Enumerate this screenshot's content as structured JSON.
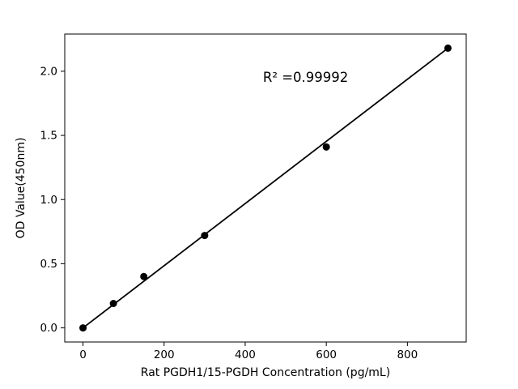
{
  "chart_data": {
    "type": "scatter",
    "title": "",
    "xlabel": "Rat PGDH1/15-PGDH Concentration (pg/mL)",
    "ylabel": "OD Value(450nm)",
    "annotation": "R² =0.99992",
    "x": [
      0,
      75,
      150,
      300,
      600,
      900
    ],
    "y": [
      0.0,
      0.19,
      0.4,
      0.72,
      1.41,
      2.18
    ],
    "fit_line": {
      "x1": 0,
      "y1": 0.0,
      "x2": 900,
      "y2": 2.18
    },
    "xlim": [
      -45,
      945
    ],
    "ylim": [
      -0.11,
      2.29
    ],
    "xticks": [
      0,
      200,
      400,
      600,
      800
    ],
    "yticks": [
      0.0,
      0.5,
      1.0,
      1.5,
      2.0
    ],
    "ytick_decimals": 1,
    "legend": "none",
    "grid": "off",
    "marker_color": "#000000",
    "line_color": "#000000",
    "axis_color": "#000000",
    "background": "#ffffff"
  }
}
